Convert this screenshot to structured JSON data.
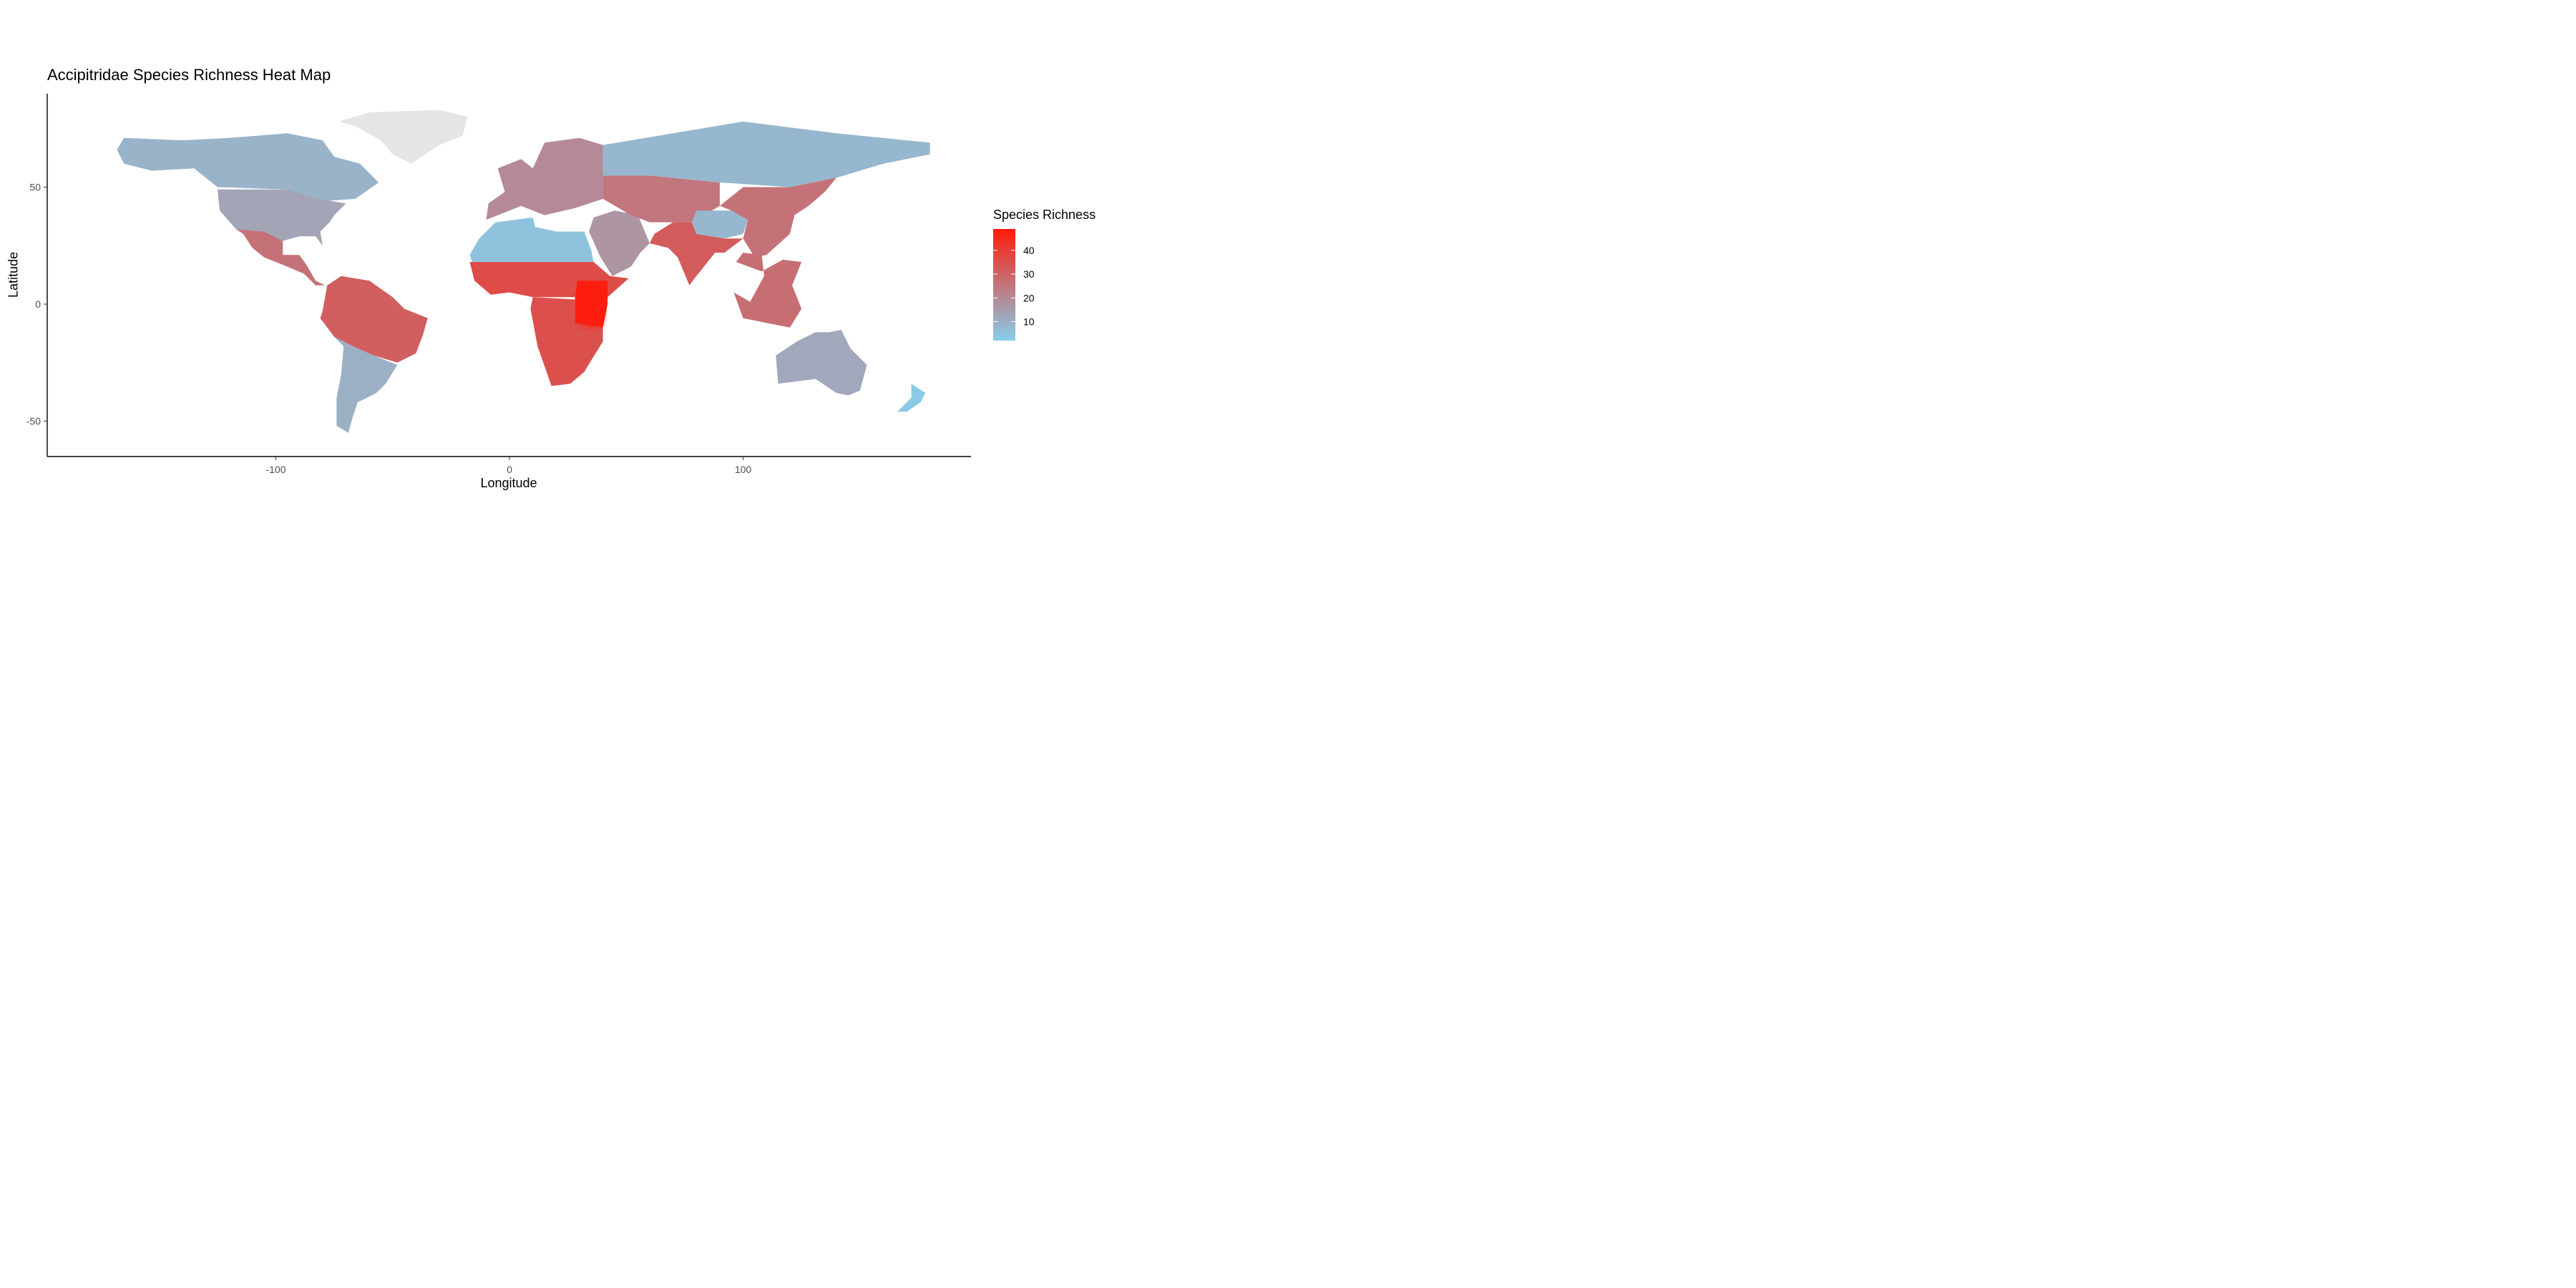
{
  "chart_data": {
    "type": "heatmap",
    "title": "Accipitridae Species Richness Heat Map",
    "xlabel": "Longitude",
    "ylabel": "Latitude",
    "xlim": [
      -180,
      180
    ],
    "ylim": [
      -58,
      90
    ],
    "x_ticks": [
      -100,
      0,
      100
    ],
    "x_tick_labels": [
      "-100",
      "0",
      "100"
    ],
    "y_ticks": [
      -50,
      0,
      50
    ],
    "y_tick_labels": [
      "-50",
      "0",
      "50"
    ],
    "grid": false,
    "legend": {
      "title": "Species Richness",
      "placement": "right",
      "min": 2,
      "max": 49,
      "ticks": [
        10,
        20,
        30,
        40
      ],
      "tick_labels": [
        "10",
        "20",
        "30",
        "40"
      ],
      "low_color": "#87CEEB",
      "high_color": "#FF1A0A"
    },
    "no_data_color": "#E5E5E5",
    "regions": [
      {
        "name": "North America (north)",
        "lon": [
          -168,
          -58
        ],
        "lat": [
          50,
          72
        ],
        "value": 9
      },
      {
        "name": "North America (south)",
        "lon": [
          -125,
          -68
        ],
        "lat": [
          26,
          50
        ],
        "value": 13
      },
      {
        "name": "Mexico & Central America",
        "lon": [
          -115,
          -78
        ],
        "lat": [
          8,
          30
        ],
        "value": 26
      },
      {
        "name": "South America (Amazon)",
        "lon": [
          -80,
          -36
        ],
        "lat": [
          -20,
          12
        ],
        "value": 31
      },
      {
        "name": "South America (south)",
        "lon": [
          -75,
          -52
        ],
        "lat": [
          -55,
          -20
        ],
        "value": 10
      },
      {
        "name": "Greenland",
        "lon": [
          -73,
          -12
        ],
        "lat": [
          60,
          83
        ],
        "value": null
      },
      {
        "name": "Sahara",
        "lon": [
          -16,
          30
        ],
        "lat": [
          17,
          33
        ],
        "value": 5
      },
      {
        "name": "Sahel",
        "lon": [
          -17,
          45
        ],
        "lat": [
          3,
          17
        ],
        "value": 36
      },
      {
        "name": "East Africa",
        "lon": [
          28,
          42
        ],
        "lat": [
          -12,
          10
        ],
        "value": 48
      },
      {
        "name": "Southern Africa",
        "lon": [
          12,
          40
        ],
        "lat": [
          -35,
          -12
        ],
        "value": 35
      },
      {
        "name": "Europe",
        "lon": [
          -10,
          40
        ],
        "lat": [
          36,
          70
        ],
        "value": 20
      },
      {
        "name": "Middle East",
        "lon": [
          34,
          60
        ],
        "lat": [
          12,
          40
        ],
        "value": 17
      },
      {
        "name": "Central Asia",
        "lon": [
          50,
          90
        ],
        "lat": [
          35,
          55
        ],
        "value": 25
      },
      {
        "name": "Siberia",
        "lon": [
          60,
          180
        ],
        "lat": [
          55,
          75
        ],
        "value": 8
      },
      {
        "name": "Tibetan Plateau",
        "lon": [
          78,
          102
        ],
        "lat": [
          28,
          40
        ],
        "value": 8
      },
      {
        "name": "Himalayas & South Asia",
        "lon": [
          68,
          92
        ],
        "lat": [
          8,
          32
        ],
        "value": 32
      },
      {
        "name": "East Asia",
        "lon": [
          100,
          125
        ],
        "lat": [
          20,
          45
        ],
        "value": 26
      },
      {
        "name": "Southeast Asia",
        "lon": [
          95,
          125
        ],
        "lat": [
          -10,
          20
        ],
        "value": 27
      },
      {
        "name": "Australia",
        "lon": [
          113,
          154
        ],
        "lat": [
          -39,
          -11
        ],
        "value": 12
      },
      {
        "name": "New Zealand",
        "lon": [
          166,
          179
        ],
        "lat": [
          -47,
          -34
        ],
        "value": 3
      }
    ]
  }
}
